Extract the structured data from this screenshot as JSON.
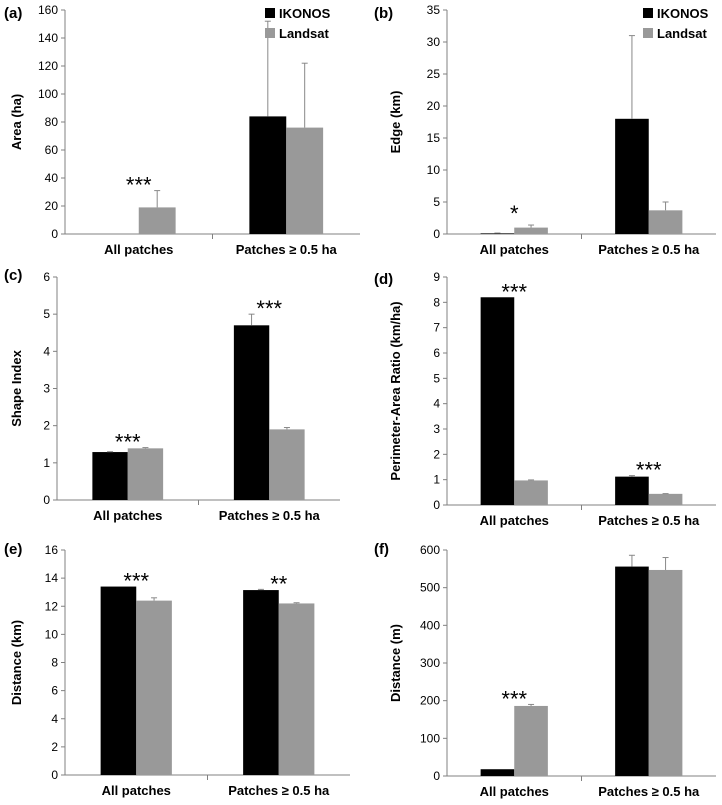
{
  "colors": {
    "ikonos": "#000000",
    "landsat": "#999999",
    "error_bar": "#888888",
    "axis": "#808080"
  },
  "chart_data": [
    {
      "panel": "(a)",
      "type": "bar",
      "ylabel": "Area (ha)",
      "ylim": [
        0,
        160
      ],
      "yticks": [
        "0",
        "20",
        "40",
        "60",
        "80",
        "100",
        "120",
        "140",
        "160"
      ],
      "categories": [
        "All patches",
        "Patches ≥ 0.5 ha"
      ],
      "legend": "top-right",
      "series": [
        {
          "name": "IKONOS",
          "values": [
            0,
            84
          ],
          "errors": [
            0,
            68
          ]
        },
        {
          "name": "Landsat",
          "values": [
            19,
            76
          ],
          "errors": [
            12,
            46
          ]
        }
      ],
      "annotations": [
        {
          "category": 0,
          "text": "***"
        }
      ]
    },
    {
      "panel": "(b)",
      "type": "bar",
      "ylabel": "Edge (km)",
      "ylim": [
        0,
        35
      ],
      "yticks": [
        "0",
        "5",
        "10",
        "15",
        "20",
        "25",
        "30",
        "35"
      ],
      "categories": [
        "All patches",
        "Patches ≥ 0.5 ha"
      ],
      "legend": "top-right",
      "series": [
        {
          "name": "IKONOS",
          "values": [
            0.1,
            18
          ],
          "errors": [
            0.05,
            13
          ]
        },
        {
          "name": "Landsat",
          "values": [
            1.0,
            3.7
          ],
          "errors": [
            0.4,
            1.3
          ]
        }
      ],
      "annotations": [
        {
          "category": 0,
          "text": "*"
        }
      ]
    },
    {
      "panel": "(c)",
      "type": "bar",
      "ylabel": "Shape Index",
      "ylim": [
        0,
        6
      ],
      "yticks": [
        "0",
        "1",
        "2",
        "3",
        "4",
        "5",
        "6"
      ],
      "categories": [
        "All patches",
        "Patches ≥ 0.5 ha"
      ],
      "legend": "none",
      "series": [
        {
          "name": "IKONOS",
          "values": [
            1.29,
            4.7
          ],
          "errors": [
            0.01,
            0.3
          ]
        },
        {
          "name": "Landsat",
          "values": [
            1.39,
            1.9
          ],
          "errors": [
            0.02,
            0.05
          ]
        }
      ],
      "annotations": [
        {
          "category": 0,
          "text": "***"
        },
        {
          "category": 1,
          "text": "***"
        }
      ]
    },
    {
      "panel": "(d)",
      "type": "bar",
      "ylabel": "Perimeter-Area Ratio (km/ha)",
      "ylim": [
        0,
        9
      ],
      "yticks": [
        "0",
        "1",
        "2",
        "3",
        "4",
        "5",
        "6",
        "7",
        "8",
        "9"
      ],
      "categories": [
        "All patches",
        "Patches ≥ 0.5 ha"
      ],
      "legend": "none",
      "series": [
        {
          "name": "IKONOS",
          "values": [
            8.2,
            1.12
          ],
          "errors": [
            0,
            0.04
          ]
        },
        {
          "name": "Landsat",
          "values": [
            0.97,
            0.44
          ],
          "errors": [
            0.02,
            0.01
          ]
        }
      ],
      "annotations": [
        {
          "category": 0,
          "text": "***"
        },
        {
          "category": 1,
          "text": "***"
        }
      ]
    },
    {
      "panel": "(e)",
      "type": "bar",
      "ylabel": "Distance (km)",
      "ylim": [
        0,
        16
      ],
      "yticks": [
        "0",
        "2",
        "4",
        "6",
        "8",
        "10",
        "12",
        "14",
        "16"
      ],
      "categories": [
        "All patches",
        "Patches ≥ 0.5 ha"
      ],
      "legend": "none",
      "series": [
        {
          "name": "IKONOS",
          "values": [
            13.4,
            13.15
          ],
          "errors": [
            0,
            0.05
          ]
        },
        {
          "name": "Landsat",
          "values": [
            12.4,
            12.2
          ],
          "errors": [
            0.2,
            0.05
          ]
        }
      ],
      "annotations": [
        {
          "category": 0,
          "text": "***"
        },
        {
          "category": 1,
          "text": "**"
        }
      ]
    },
    {
      "panel": "(f)",
      "type": "bar",
      "ylabel": "Distance (m)",
      "ylim": [
        0,
        600
      ],
      "yticks": [
        "0",
        "100",
        "200",
        "300",
        "400",
        "500",
        "600"
      ],
      "categories": [
        "All patches",
        "Patches ≥ 0.5 ha"
      ],
      "legend": "none",
      "series": [
        {
          "name": "IKONOS",
          "values": [
            18,
            556
          ],
          "errors": [
            0,
            30
          ]
        },
        {
          "name": "Landsat",
          "values": [
            186,
            547
          ],
          "errors": [
            4,
            33
          ]
        }
      ],
      "annotations": [
        {
          "category": 0,
          "text": "***"
        }
      ]
    }
  ]
}
